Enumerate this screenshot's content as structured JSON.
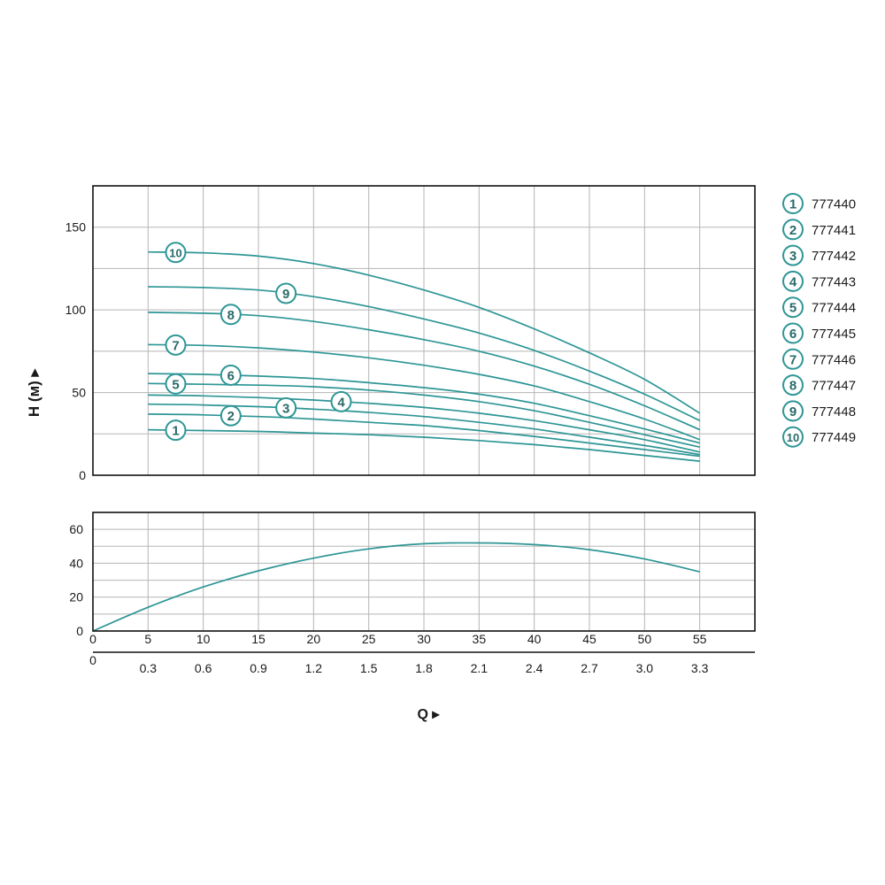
{
  "colors": {
    "curve": "#2e9595",
    "grid": "#b5b5b5",
    "frame": "#111111",
    "text": "#1a1a1a"
  },
  "chart_data": [
    {
      "type": "line",
      "title": "",
      "ylabel": "H (м) ▸",
      "xlabel": "",
      "xlim": [
        0,
        60
      ],
      "ylim": [
        0,
        175
      ],
      "yticks": [
        "0",
        "50",
        "100",
        "150"
      ],
      "grid": true,
      "legend_position": "right",
      "legend": [
        {
          "num": "1",
          "label": "777440"
        },
        {
          "num": "2",
          "label": "777441"
        },
        {
          "num": "3",
          "label": "777442"
        },
        {
          "num": "4",
          "label": "777443"
        },
        {
          "num": "5",
          "label": "777444"
        },
        {
          "num": "6",
          "label": "777445"
        },
        {
          "num": "7",
          "label": "777446"
        },
        {
          "num": "8",
          "label": "777447"
        },
        {
          "num": "9",
          "label": "777448"
        },
        {
          "num": "10",
          "label": "777449"
        }
      ],
      "x": [
        5,
        10,
        15,
        20,
        25,
        30,
        35,
        40,
        45,
        50,
        55
      ],
      "series": [
        {
          "name": "1",
          "marker_x": 7.5,
          "values": [
            27.5,
            27,
            26.5,
            25.5,
            24.5,
            23,
            21,
            18.5,
            15.5,
            12,
            8.5
          ]
        },
        {
          "name": "2",
          "marker_x": 12.5,
          "values": [
            37,
            36.5,
            35.5,
            34,
            32,
            30,
            27,
            23.5,
            19.5,
            15.5,
            11.5
          ]
        },
        {
          "name": "3",
          "marker_x": 17.5,
          "values": [
            43,
            42.5,
            41.5,
            40,
            38,
            35.5,
            32,
            28,
            23,
            18,
            12.5
          ]
        },
        {
          "name": "4",
          "marker_x": 22.5,
          "values": [
            48.5,
            48,
            47,
            45.5,
            43.5,
            41,
            37.5,
            33,
            27.5,
            21.5,
            14
          ]
        },
        {
          "name": "5",
          "marker_x": 7.5,
          "values": [
            55.5,
            55,
            54.5,
            53.5,
            51.5,
            48.5,
            44.5,
            39,
            32,
            24.5,
            17
          ]
        },
        {
          "name": "6",
          "marker_x": 12.5,
          "values": [
            61.5,
            61,
            60,
            58.5,
            56,
            53,
            49,
            43.5,
            36,
            28,
            19.5
          ]
        },
        {
          "name": "7",
          "marker_x": 7.5,
          "values": [
            79,
            78.5,
            77,
            74.5,
            71,
            66.5,
            61,
            54,
            44.5,
            34,
            21.5
          ]
        },
        {
          "name": "8",
          "marker_x": 12.5,
          "values": [
            98.5,
            98,
            96.5,
            93,
            88,
            82,
            75,
            66,
            55,
            42,
            27.5
          ]
        },
        {
          "name": "9",
          "marker_x": 17.5,
          "values": [
            114,
            113.5,
            112,
            108,
            102,
            94.5,
            86,
            75.5,
            63,
            49,
            33
          ]
        },
        {
          "name": "10",
          "marker_x": 7.5,
          "values": [
            135,
            134.5,
            132.5,
            128,
            121,
            112,
            101.5,
            88.5,
            74,
            58,
            37.5
          ]
        }
      ]
    },
    {
      "type": "line",
      "title": "",
      "xlim": [
        0,
        60
      ],
      "ylim": [
        0,
        70
      ],
      "yticks": [
        "0",
        "20",
        "40",
        "60"
      ],
      "grid": true,
      "xticks": [
        "0",
        "5",
        "10",
        "15",
        "20",
        "25",
        "30",
        "35",
        "40",
        "45",
        "50",
        "55"
      ],
      "x": [
        0,
        5,
        10,
        15,
        20,
        25,
        30,
        35,
        40,
        45,
        50,
        55
      ],
      "series": [
        {
          "values": [
            0,
            14,
            26,
            35.5,
            43,
            48.5,
            51.5,
            52,
            51,
            48,
            42.5,
            35
          ]
        }
      ]
    }
  ],
  "secondary_axis": {
    "ticks": [
      "0",
      "0.3",
      "0.6",
      "0.9",
      "1.2",
      "1.5",
      "1.8",
      "2.1",
      "2.4",
      "2.7",
      "3.0",
      "3.3"
    ],
    "values": [
      0,
      0.3,
      0.6,
      0.9,
      1.2,
      1.5,
      1.8,
      2.1,
      2.4,
      2.7,
      3.0,
      3.3
    ]
  },
  "q_label": "Q ▸"
}
